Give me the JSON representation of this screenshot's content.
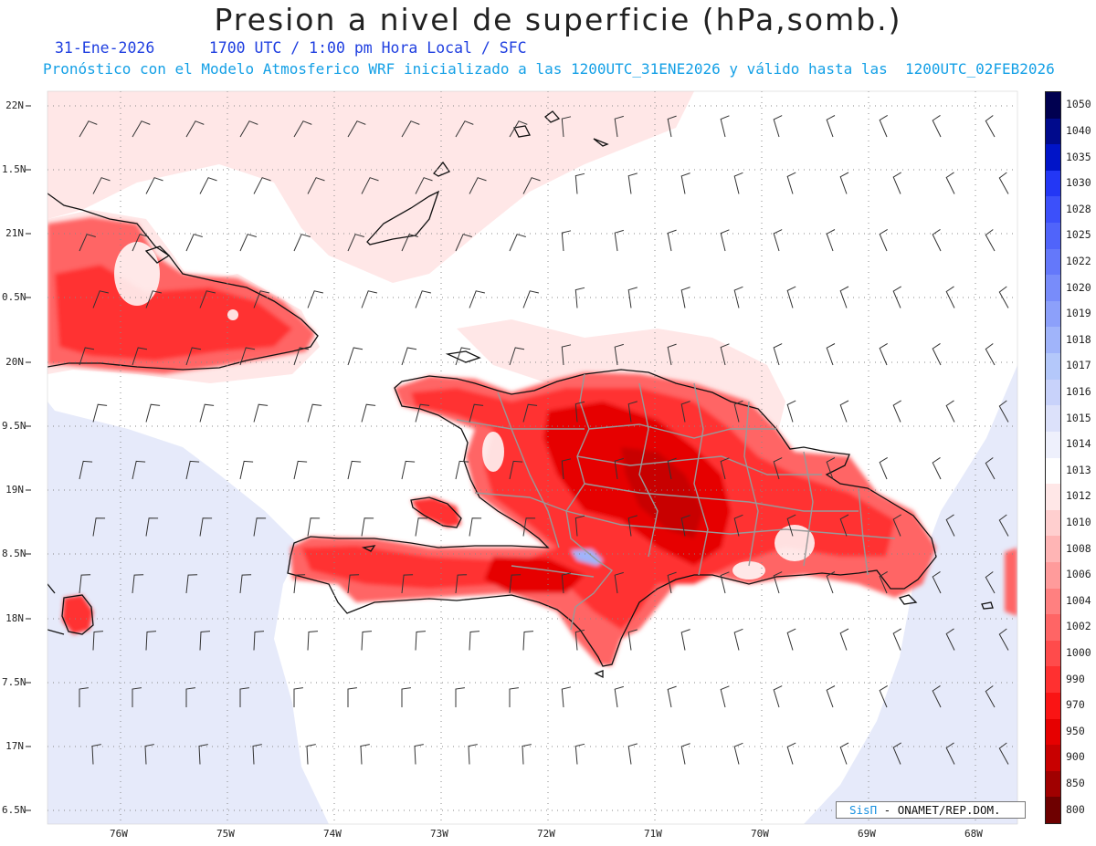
{
  "title": "Presion a nivel de superficie (hPa,somb.)",
  "subtitle": "31-Ene-2026      1700 UTC / 1:00 pm Hora Local / SFC",
  "forecast_note": "Pronóstico con el Modelo Atmosferico WRF inicializado a las 1200UTC_31ENE2026 y válido hasta las  1200UTC_02FEB2026",
  "credit": {
    "logo": "SisΠ",
    "text": "- ONAMET/REP.DOM."
  },
  "map": {
    "lat_labels": [
      "22N",
      "1.5N",
      "21N",
      "0.5N",
      "20N",
      "9.5N",
      "19N",
      "8.5N",
      "18N",
      "7.5N",
      "17N",
      "6.5N"
    ],
    "lon_labels": [
      "76W",
      "75W",
      "74W",
      "73W",
      "72W",
      "71W",
      "70W",
      "69W",
      "68W"
    ],
    "lat_range": [
      16.5,
      22
    ],
    "lon_range": [
      -76.6,
      -67.6
    ]
  },
  "colors": {
    "country_border": "#999999",
    "coast": "#111111",
    "field_low_high": "#e6eafa",
    "field_high": "#ffe7e7"
  },
  "legend": {
    "levels": [
      "1050",
      "1040",
      "1035",
      "1030",
      "1028",
      "1025",
      "1022",
      "1020",
      "1019",
      "1018",
      "1017",
      "1016",
      "1015",
      "1014",
      "1013",
      "1012",
      "1010",
      "1008",
      "1006",
      "1004",
      "1002",
      "1000",
      "990",
      "970",
      "950",
      "900",
      "850",
      "800"
    ],
    "colors": [
      "#000050",
      "#000a8c",
      "#0014c8",
      "#2337f5",
      "#3c50fa",
      "#5064fa",
      "#6478fa",
      "#788cfa",
      "#8ca0fa",
      "#a0b4fa",
      "#b4c8fa",
      "#c8d2fa",
      "#dce1fa",
      "#eef0fc",
      "#ffffff",
      "#ffe7e7",
      "#ffcfcf",
      "#ffb5b5",
      "#ff9b9b",
      "#ff8080",
      "#ff6565",
      "#ff4b4b",
      "#ff3030",
      "#fa1414",
      "#e60000",
      "#c80000",
      "#a00000",
      "#6e0000"
    ]
  }
}
